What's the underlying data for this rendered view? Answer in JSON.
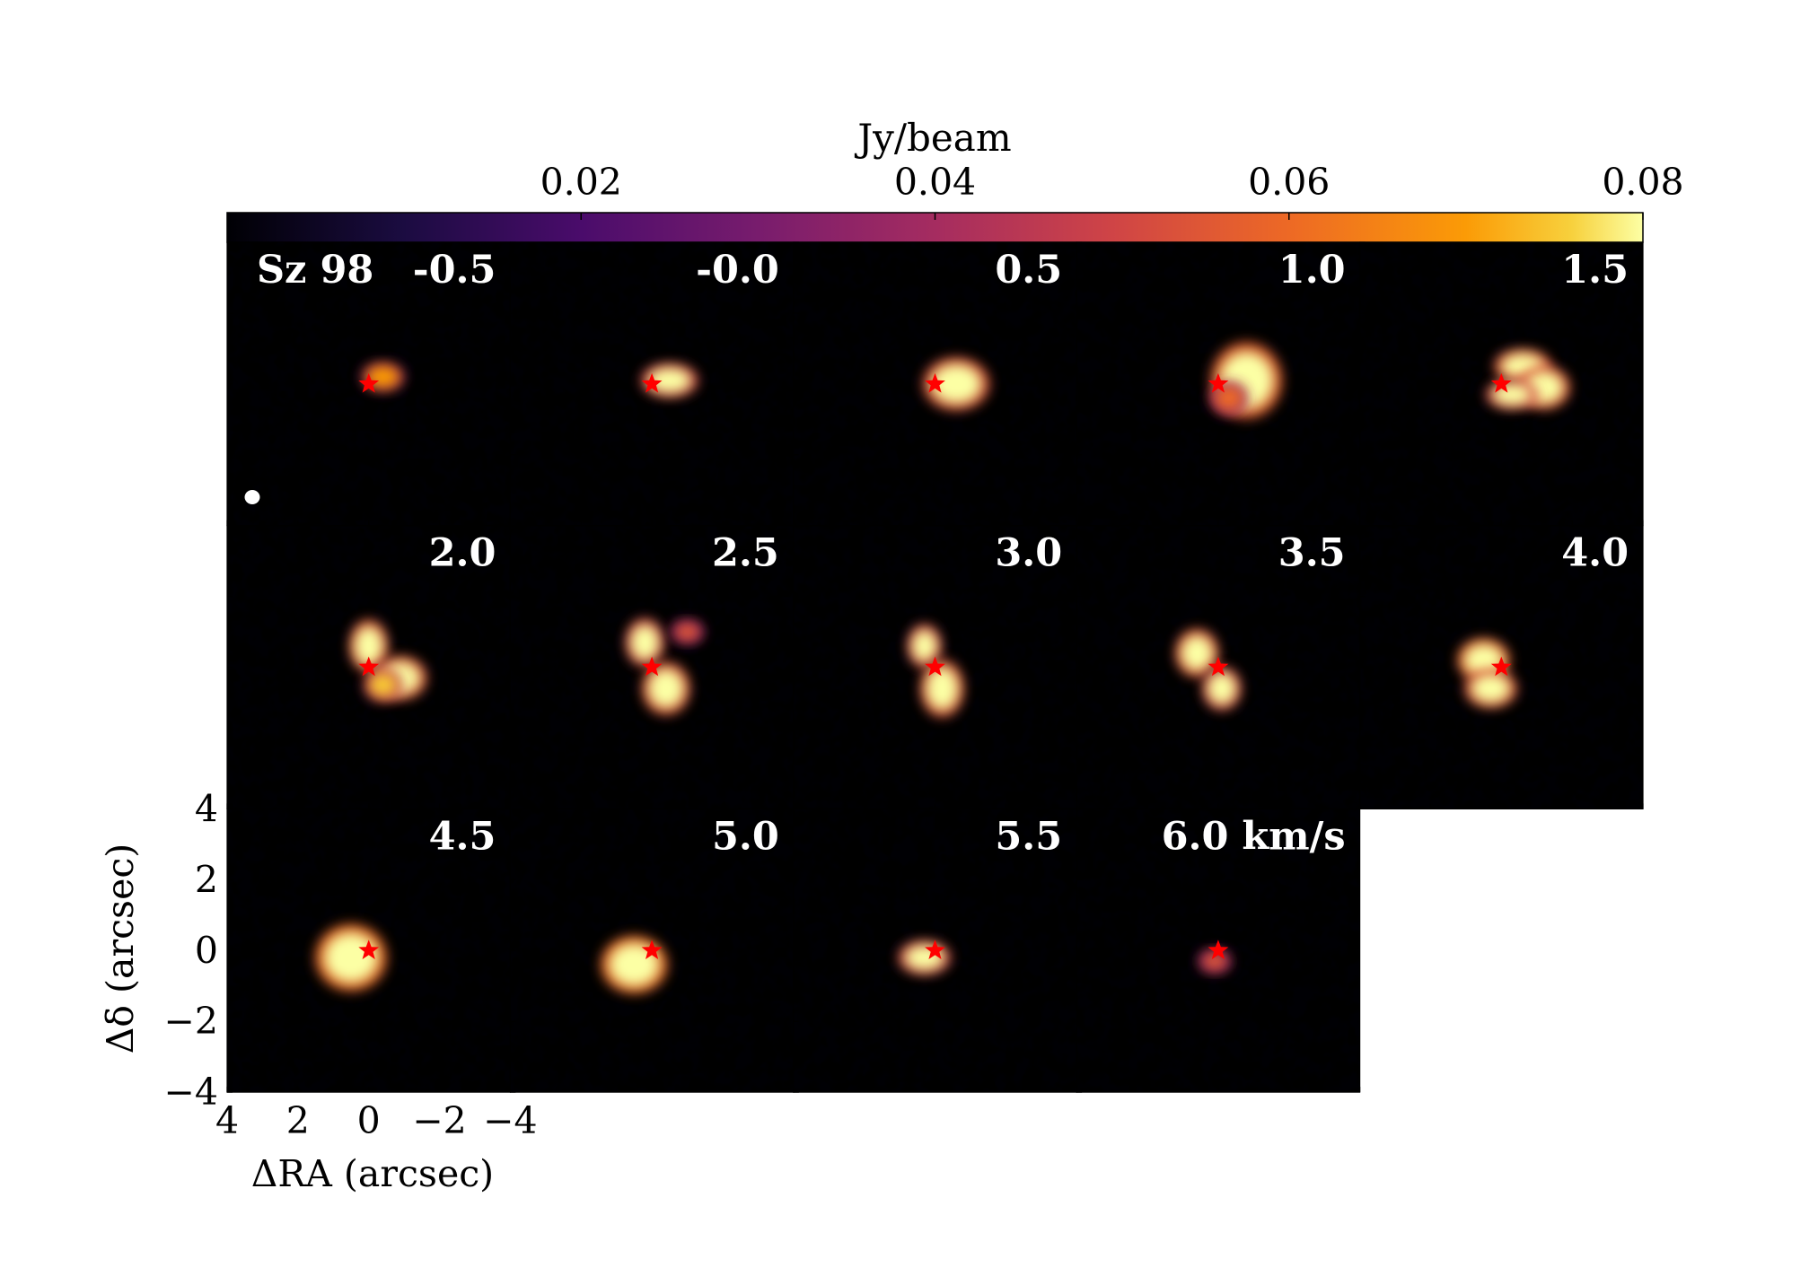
{
  "chart_data": {
    "type": "heatmap",
    "source_name": "Sz 98",
    "colorbar": {
      "label": "Jy/beam",
      "colormap": "inferno",
      "range": [
        0.0,
        0.08
      ],
      "ticks": [
        0.02,
        0.04,
        0.06,
        0.08
      ],
      "tick_labels": [
        "0.02",
        "0.04",
        "0.06",
        "0.08"
      ],
      "location": "top"
    },
    "channels": [
      {
        "label": "-0.5",
        "velocity": -0.5,
        "blobs": [
          {
            "x": -0.4,
            "y": 0.2,
            "rx": 0.45,
            "ry": 0.3,
            "amp": 0.07
          }
        ]
      },
      {
        "label": "-0.0",
        "velocity": 0.0,
        "blobs": [
          {
            "x": -0.5,
            "y": 0.1,
            "rx": 0.6,
            "ry": 0.35,
            "amp": 0.085
          }
        ]
      },
      {
        "label": "0.5",
        "velocity": 0.5,
        "blobs": [
          {
            "x": -0.6,
            "y": 0.0,
            "rx": 0.7,
            "ry": 0.55,
            "amp": 0.09
          }
        ]
      },
      {
        "label": "1.0",
        "velocity": 1.0,
        "blobs": [
          {
            "x": -0.8,
            "y": 0.1,
            "rx": 0.75,
            "ry": 0.8,
            "amp": 0.095
          },
          {
            "x": -0.3,
            "y": -0.4,
            "rx": 0.4,
            "ry": 0.35,
            "amp": 0.06
          }
        ]
      },
      {
        "label": "1.5",
        "velocity": 1.5,
        "blobs": [
          {
            "x": -0.6,
            "y": 0.5,
            "rx": 0.6,
            "ry": 0.35,
            "amp": 0.09
          },
          {
            "x": -1.2,
            "y": -0.1,
            "rx": 0.55,
            "ry": 0.45,
            "amp": 0.09
          },
          {
            "x": -0.3,
            "y": -0.3,
            "rx": 0.55,
            "ry": 0.3,
            "amp": 0.085
          }
        ]
      },
      {
        "label": "2.0",
        "velocity": 2.0,
        "blobs": [
          {
            "x": 0.0,
            "y": 0.6,
            "rx": 0.4,
            "ry": 0.55,
            "amp": 0.09
          },
          {
            "x": -0.9,
            "y": -0.3,
            "rx": 0.55,
            "ry": 0.45,
            "amp": 0.09
          },
          {
            "x": -0.4,
            "y": -0.5,
            "rx": 0.4,
            "ry": 0.35,
            "amp": 0.075
          }
        ]
      },
      {
        "label": "2.5",
        "velocity": 2.5,
        "blobs": [
          {
            "x": 0.2,
            "y": 0.7,
            "rx": 0.4,
            "ry": 0.5,
            "amp": 0.085
          },
          {
            "x": -0.4,
            "y": -0.6,
            "rx": 0.5,
            "ry": 0.55,
            "amp": 0.09
          },
          {
            "x": -1.0,
            "y": 1.0,
            "rx": 0.35,
            "ry": 0.25,
            "amp": 0.055
          }
        ]
      },
      {
        "label": "3.0",
        "velocity": 3.0,
        "blobs": [
          {
            "x": 0.3,
            "y": 0.6,
            "rx": 0.35,
            "ry": 0.45,
            "amp": 0.085
          },
          {
            "x": -0.2,
            "y": -0.6,
            "rx": 0.45,
            "ry": 0.6,
            "amp": 0.09
          }
        ]
      },
      {
        "label": "3.5",
        "velocity": 3.5,
        "blobs": [
          {
            "x": 0.6,
            "y": 0.4,
            "rx": 0.45,
            "ry": 0.5,
            "amp": 0.09
          },
          {
            "x": -0.1,
            "y": -0.6,
            "rx": 0.4,
            "ry": 0.45,
            "amp": 0.085
          }
        ]
      },
      {
        "label": "4.0",
        "velocity": 4.0,
        "blobs": [
          {
            "x": 0.5,
            "y": 0.2,
            "rx": 0.55,
            "ry": 0.45,
            "amp": 0.095
          },
          {
            "x": 0.3,
            "y": -0.6,
            "rx": 0.55,
            "ry": 0.4,
            "amp": 0.09
          }
        ]
      },
      {
        "label": "4.5",
        "velocity": 4.5,
        "blobs": [
          {
            "x": 0.5,
            "y": -0.2,
            "rx": 0.75,
            "ry": 0.7,
            "amp": 0.1
          }
        ]
      },
      {
        "label": "5.0",
        "velocity": 5.0,
        "blobs": [
          {
            "x": 0.5,
            "y": -0.4,
            "rx": 0.7,
            "ry": 0.6,
            "amp": 0.1
          }
        ]
      },
      {
        "label": "5.5",
        "velocity": 5.5,
        "blobs": [
          {
            "x": 0.3,
            "y": -0.2,
            "rx": 0.55,
            "ry": 0.35,
            "amp": 0.085
          }
        ]
      },
      {
        "label": "6.0 km/s",
        "velocity": 6.0,
        "blobs": [
          {
            "x": 0.1,
            "y": -0.3,
            "rx": 0.35,
            "ry": 0.25,
            "amp": 0.055
          }
        ]
      }
    ],
    "star_marker": {
      "x": 0,
      "y": 0,
      "color": "#ff0000"
    },
    "beam_marker": {
      "color": "#ffffff"
    },
    "x_axis": {
      "label": "ΔRA (arcsec)",
      "range": [
        4,
        -4
      ],
      "ticks": [
        4,
        2,
        0,
        -2,
        -4
      ],
      "tick_labels": [
        "4",
        "2",
        "0",
        "−2",
        "−4"
      ]
    },
    "y_axis": {
      "label": "Δδ (arcsec)",
      "range": [
        -4,
        4
      ],
      "ticks": [
        4,
        2,
        0,
        -2,
        -4
      ],
      "tick_labels": [
        "4",
        "2",
        "0",
        "−2",
        "−4"
      ]
    },
    "grid": false
  }
}
